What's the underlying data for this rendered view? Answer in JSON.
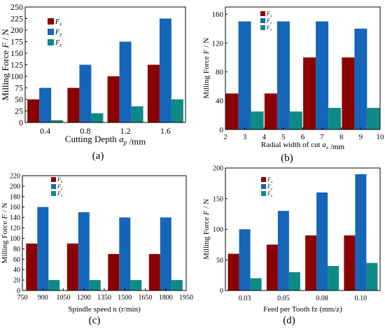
{
  "colors": {
    "Fx": "#8B0000",
    "Fy": "#1565B8",
    "Fz": "#0E8A86",
    "axis": "#000000"
  },
  "captions": [
    "(a)",
    "(b)",
    "(c)",
    "(d)"
  ],
  "chart_data": [
    {
      "type": "bar",
      "caption": "(a)",
      "title": "",
      "ylabel": "Milling Force F / N",
      "xlabel": "Cutting Depth a_p /mm",
      "categories": [
        "0.4",
        "0.8",
        "1.2",
        "1.6"
      ],
      "ylim": [
        0,
        250
      ],
      "yticks": [
        0,
        25,
        50,
        75,
        100,
        125,
        150,
        175,
        200,
        225,
        250
      ],
      "legend": {
        "position": "top-left",
        "labels": [
          "F_x",
          "F_y",
          "F_z"
        ]
      },
      "series": [
        {
          "name": "F_x",
          "values": [
            50,
            75,
            100,
            125
          ]
        },
        {
          "name": "F_y",
          "values": [
            75,
            125,
            175,
            225
          ]
        },
        {
          "name": "F_z",
          "values": [
            5,
            20,
            35,
            50
          ]
        }
      ]
    },
    {
      "type": "bar",
      "caption": "(b)",
      "title": "",
      "ylabel": "Milling Force F / N",
      "xlabel": "Radial width of cut a_e /mm",
      "xticks": [
        "2",
        "3",
        "4",
        "5",
        "6",
        "7",
        "8",
        "9",
        "10"
      ],
      "x": [
        3,
        5,
        7,
        9
      ],
      "ylim": [
        0,
        170
      ],
      "yticks": [
        0,
        40,
        80,
        120,
        160
      ],
      "legend": {
        "position": "top-left",
        "labels": [
          "F_x",
          "F_y",
          "F_z"
        ]
      },
      "series": [
        {
          "name": "F_x",
          "values": [
            50,
            50,
            100,
            100
          ]
        },
        {
          "name": "F_y",
          "values": [
            150,
            150,
            150,
            140
          ]
        },
        {
          "name": "F_z",
          "values": [
            25,
            25,
            30,
            30
          ]
        }
      ]
    },
    {
      "type": "bar",
      "caption": "(c)",
      "title": "",
      "ylabel": "Milling Force F / N",
      "xlabel": "Spindle speed n (r/min)",
      "xticks": [
        "750",
        "900",
        "1050",
        "1200",
        "1350",
        "1500",
        "1650",
        "1800",
        "1950"
      ],
      "x": [
        900,
        1200,
        1500,
        1800
      ],
      "ylim": [
        0,
        220
      ],
      "yticks": [
        0,
        20,
        40,
        60,
        80,
        100,
        120,
        140,
        160,
        180,
        200,
        220
      ],
      "legend": {
        "position": "top-left",
        "labels": [
          "F_x",
          "F_y",
          "F_z"
        ]
      },
      "series": [
        {
          "name": "F_x",
          "values": [
            90,
            90,
            70,
            70
          ]
        },
        {
          "name": "F_y",
          "values": [
            160,
            150,
            140,
            140
          ]
        },
        {
          "name": "F_z",
          "values": [
            20,
            20,
            20,
            20
          ]
        }
      ]
    },
    {
      "type": "bar",
      "caption": "(d)",
      "title": "",
      "ylabel": "Milling Force F / N",
      "xlabel": "Feed per Tooth fz (mm/z)",
      "categories": [
        "0.03",
        "0.05",
        "0.08",
        "0.10"
      ],
      "ylim": [
        0,
        200
      ],
      "yticks": [
        0,
        50,
        100,
        150,
        200
      ],
      "legend": {
        "position": "top-left",
        "labels": [
          "F_x",
          "F_y",
          "F_z"
        ]
      },
      "series": [
        {
          "name": "F_x",
          "values": [
            60,
            75,
            90,
            90
          ]
        },
        {
          "name": "F_y",
          "values": [
            100,
            130,
            160,
            190
          ]
        },
        {
          "name": "F_z",
          "values": [
            20,
            30,
            40,
            45
          ]
        }
      ]
    }
  ]
}
